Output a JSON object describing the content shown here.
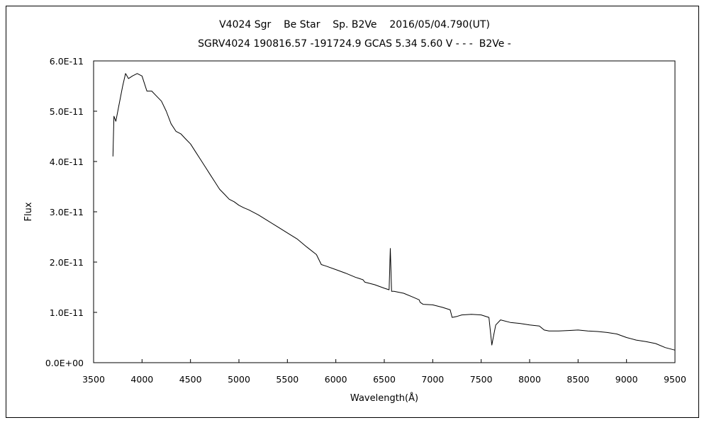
{
  "chart_data": {
    "type": "line",
    "title": "V4024 Sgr    Be Star    Sp. B2Ve    2016/05/04.790(UT)",
    "subtitle": "SGRV4024 190816.57 -191724.9 GCAS 5.34 5.60 V - - -  B2Ve -",
    "xlabel": "Wavelength(Å)",
    "ylabel": "Flux",
    "xlim": [
      3500,
      9500
    ],
    "ylim": [
      0,
      6e-11
    ],
    "x_ticks": [
      3500,
      4000,
      4500,
      5000,
      5500,
      6000,
      6500,
      7000,
      7500,
      8000,
      8500,
      9000,
      9500
    ],
    "x_tick_labels": [
      "3500",
      "4000",
      "4500",
      "5000",
      "5500",
      "6000",
      "6500",
      "7000",
      "7500",
      "8000",
      "8500",
      "9000",
      "9500"
    ],
    "y_ticks": [
      0,
      1e-11,
      2e-11,
      3e-11,
      4e-11,
      5e-11,
      6e-11
    ],
    "y_tick_labels": [
      "0.0E+00",
      "1.0E-11",
      "2.0E-11",
      "3.0E-11",
      "4.0E-11",
      "5.0E-11",
      "6.0E-11"
    ],
    "grid": false,
    "series": [
      {
        "x": [
          3700,
          3710,
          3730,
          3760,
          3800,
          3830,
          3860,
          3900,
          3950,
          4000,
          4050,
          4100,
          4150,
          4200,
          4250,
          4300,
          4350,
          4400,
          4450,
          4500,
          4550,
          4600,
          4650,
          4700,
          4750,
          4800,
          4850,
          4900,
          4950,
          5000,
          5050,
          5100,
          5200,
          5300,
          5400,
          5500,
          5600,
          5700,
          5800,
          5850,
          5900,
          6000,
          6100,
          6200,
          6280,
          6300,
          6400,
          6500,
          6550,
          6562,
          6575,
          6600,
          6700,
          6800,
          6860,
          6870,
          6900,
          7000,
          7100,
          7180,
          7200,
          7250,
          7300,
          7400,
          7500,
          7580,
          7610,
          7630,
          7650,
          7700,
          7800,
          7900,
          8000,
          8100,
          8150,
          8200,
          8300,
          8400,
          8500,
          8600,
          8700,
          8800,
          8900,
          9000,
          9100,
          9200,
          9300,
          9400,
          9500
        ],
        "y": [
          4.1e-11,
          4.9e-11,
          4.8e-11,
          5.1e-11,
          5.5e-11,
          5.75e-11,
          5.65e-11,
          5.7e-11,
          5.75e-11,
          5.7e-11,
          5.4e-11,
          5.4e-11,
          5.3e-11,
          5.2e-11,
          5e-11,
          4.75e-11,
          4.6e-11,
          4.55e-11,
          4.45e-11,
          4.35e-11,
          4.2e-11,
          4.05e-11,
          3.9e-11,
          3.75e-11,
          3.6e-11,
          3.45e-11,
          3.35e-11,
          3.25e-11,
          3.2e-11,
          3.13e-11,
          3.08e-11,
          3.04e-11,
          2.94e-11,
          2.82e-11,
          2.7e-11,
          2.58e-11,
          2.46e-11,
          2.3e-11,
          2.15e-11,
          1.95e-11,
          1.92e-11,
          1.85e-11,
          1.78e-11,
          1.7e-11,
          1.65e-11,
          1.6e-11,
          1.55e-11,
          1.48e-11,
          1.45e-11,
          2.27e-11,
          1.42e-11,
          1.42e-11,
          1.38e-11,
          1.3e-11,
          1.25e-11,
          1.2e-11,
          1.16e-11,
          1.15e-11,
          1.1e-11,
          1.05e-11,
          9e-12,
          9.2e-12,
          9.5e-12,
          9.6e-12,
          9.5e-12,
          9e-12,
          3.5e-12,
          5.5e-12,
          7.5e-12,
          8.5e-12,
          8e-12,
          7.8e-12,
          7.5e-12,
          7.3e-12,
          6.5e-12,
          6.3e-12,
          6.3e-12,
          6.4e-12,
          6.5e-12,
          6.3e-12,
          6.2e-12,
          6e-12,
          5.7e-12,
          5e-12,
          4.5e-12,
          4.2e-12,
          3.8e-12,
          3e-12,
          2.5e-12
        ]
      }
    ]
  }
}
